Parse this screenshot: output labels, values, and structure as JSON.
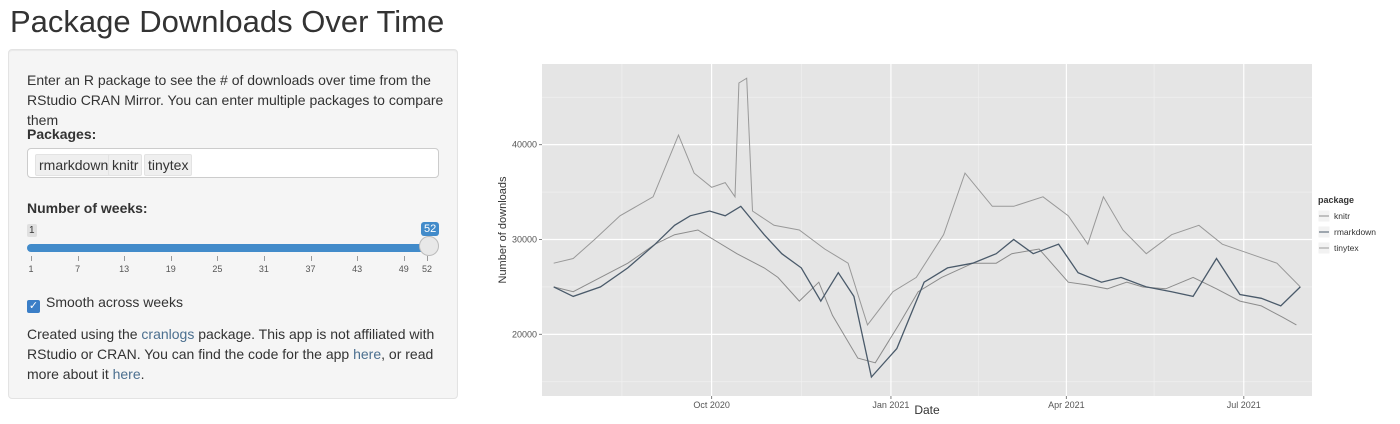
{
  "page": {
    "title": "Package Downloads Over Time"
  },
  "sidebar": {
    "intro": "Enter an R package to see the # of downloads over time from the RStudio CRAN Mirror. You can enter multiple packages to compare them",
    "packages_label": "Packages:",
    "packages": [
      "rmarkdown",
      "knitr",
      "tinytex"
    ],
    "weeks_label": "Number of weeks:",
    "weeks_min": "1",
    "weeks_value": "52",
    "weeks_fraction": 1.0,
    "tick_labels": [
      "1",
      "7",
      "13",
      "19",
      "25",
      "31",
      "37",
      "43",
      "49",
      "52"
    ],
    "smooth_label": "Smooth across weeks",
    "smooth_checked": true,
    "credit": {
      "part1": "Created using the ",
      "link1": "cranlogs",
      "part2": " package. This app is not affiliated with RStudio or CRAN. You can find the code for the app ",
      "link2": "here",
      "part3": ", or read more about it ",
      "link3": "here",
      "part4": "."
    }
  },
  "chart_data": {
    "type": "line",
    "title": "",
    "xlabel": "Date",
    "ylabel": "Number of downloads",
    "x_ticks": [
      "Oct 2020",
      "Jan 2021",
      "Apr 2021",
      "Jul 2021"
    ],
    "y_ticks": [
      20000,
      30000,
      40000
    ],
    "ylim": [
      13500,
      48500
    ],
    "xlim": [
      "2020-07-06",
      "2021-08-05"
    ],
    "grid": true,
    "legend_title": "package",
    "legend_position": "right",
    "colors": {
      "background": "#e5e5e5",
      "grid": "#ffffff",
      "knitr": "#8c8c8c",
      "rmarkdown": "#4a5a6a",
      "tinytex": "#999999",
      "rmarkdown_highlight": "#5b8fb9"
    },
    "series": [
      {
        "name": "knitr",
        "x": [
          "2020-07-12",
          "2020-07-22",
          "2020-08-05",
          "2020-08-19",
          "2020-09-02",
          "2020-09-12",
          "2020-09-24",
          "2020-10-02",
          "2020-10-14",
          "2020-10-28",
          "2020-11-04",
          "2020-11-15",
          "2020-11-25",
          "2020-12-02",
          "2020-12-15",
          "2020-12-24",
          "2021-01-05",
          "2021-01-15",
          "2021-01-27",
          "2021-02-12",
          "2021-02-24",
          "2021-03-04",
          "2021-03-18",
          "2021-04-02",
          "2021-04-12",
          "2021-04-22",
          "2021-05-02",
          "2021-05-10",
          "2021-05-22",
          "2021-06-05",
          "2021-06-17",
          "2021-06-29",
          "2021-07-10",
          "2021-07-21",
          "2021-07-28"
        ],
        "y": [
          25000,
          24500,
          26000,
          27500,
          29500,
          30500,
          31000,
          30000,
          28500,
          27000,
          26000,
          23500,
          25500,
          22000,
          17500,
          17000,
          21000,
          24500,
          26000,
          27500,
          27500,
          28500,
          29000,
          25500,
          25200,
          24800,
          25500,
          25000,
          24800,
          26000,
          24800,
          23500,
          23000,
          21800,
          21000
        ]
      },
      {
        "name": "rmarkdown",
        "x": [
          "2020-07-12",
          "2020-07-22",
          "2020-08-05",
          "2020-08-19",
          "2020-09-02",
          "2020-09-12",
          "2020-09-20",
          "2020-09-30",
          "2020-10-08",
          "2020-10-16",
          "2020-10-28",
          "2020-11-06",
          "2020-11-16",
          "2020-11-26",
          "2020-12-05",
          "2020-12-13",
          "2020-12-22",
          "2021-01-04",
          "2021-01-18",
          "2021-01-30",
          "2021-02-12",
          "2021-02-24",
          "2021-03-05",
          "2021-03-15",
          "2021-03-28",
          "2021-04-07",
          "2021-04-19",
          "2021-04-29",
          "2021-05-12",
          "2021-05-25",
          "2021-06-05",
          "2021-06-17",
          "2021-06-29",
          "2021-07-10",
          "2021-07-20",
          "2021-07-30"
        ],
        "y": [
          25000,
          24000,
          25000,
          27000,
          29500,
          31500,
          32500,
          33000,
          32500,
          33500,
          30500,
          28500,
          27000,
          23500,
          26500,
          24000,
          15500,
          18500,
          25500,
          27000,
          27500,
          28500,
          30000,
          28500,
          29500,
          26500,
          25500,
          26000,
          25000,
          24500,
          24000,
          28000,
          24200,
          23800,
          23000,
          25000
        ]
      },
      {
        "name": "tinytex",
        "x": [
          "2020-07-12",
          "2020-07-22",
          "2020-08-02",
          "2020-08-15",
          "2020-09-01",
          "2020-09-14",
          "2020-09-22",
          "2020-10-01",
          "2020-10-08",
          "2020-10-13",
          "2020-10-15",
          "2020-10-19",
          "2020-10-22",
          "2020-11-02",
          "2020-11-15",
          "2020-11-28",
          "2020-12-10",
          "2020-12-20",
          "2021-01-02",
          "2021-01-14",
          "2021-01-28",
          "2021-02-08",
          "2021-02-22",
          "2021-03-05",
          "2021-03-20",
          "2021-04-02",
          "2021-04-12",
          "2021-04-20",
          "2021-04-30",
          "2021-05-12",
          "2021-05-25",
          "2021-06-08",
          "2021-06-20",
          "2021-07-04",
          "2021-07-18",
          "2021-07-30"
        ],
        "y": [
          27500,
          28000,
          30000,
          32500,
          34500,
          41000,
          37000,
          35500,
          36000,
          34500,
          46500,
          47000,
          33000,
          31500,
          31000,
          29000,
          27500,
          21000,
          24500,
          26000,
          30500,
          37000,
          33500,
          33500,
          34500,
          32500,
          29500,
          34500,
          31000,
          28500,
          30500,
          31500,
          29500,
          28500,
          27500,
          25000
        ]
      }
    ]
  }
}
